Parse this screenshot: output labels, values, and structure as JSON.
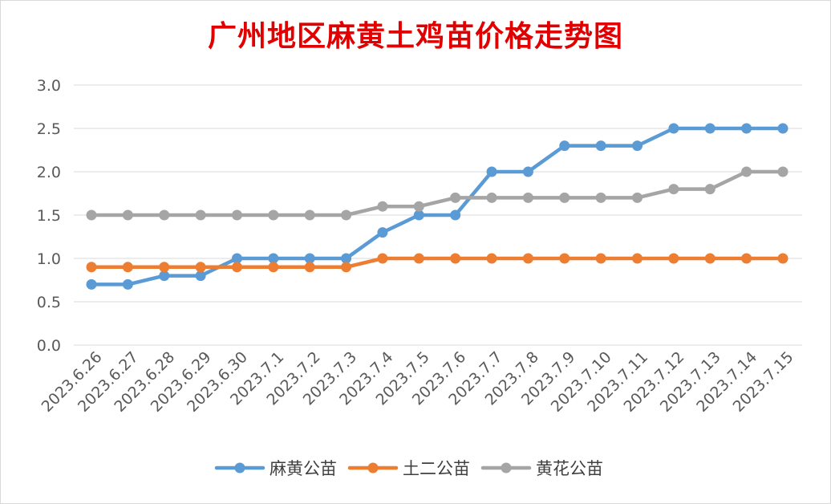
{
  "chart_data": {
    "type": "line",
    "title": "广州地区麻黄土鸡苗价格走势图",
    "xlabel": "",
    "ylabel": "",
    "ylim": [
      0,
      3.0
    ],
    "yticks": [
      "0.0",
      "0.5",
      "1.0",
      "1.5",
      "2.0",
      "2.5",
      "3.0"
    ],
    "grid": true,
    "legend_position": "bottom",
    "categories": [
      "2023.6.26",
      "2023.6.27",
      "2023.6.28",
      "2023.6.29",
      "2023.6.30",
      "2023.7.1",
      "2023.7.2",
      "2023.7.3",
      "2023.7.4",
      "2023.7.5",
      "2023.7.6",
      "2023.7.7",
      "2023.7.8",
      "2023.7.9",
      "2023.7.10",
      "2023.7.11",
      "2023.7.12",
      "2023.7.13",
      "2023.7.14",
      "2023.7.15"
    ],
    "series": [
      {
        "name": "麻黄公苗",
        "color": "#5b9bd5",
        "values": [
          0.7,
          0.7,
          0.8,
          0.8,
          1.0,
          1.0,
          1.0,
          1.0,
          1.3,
          1.5,
          1.5,
          2.0,
          2.0,
          2.3,
          2.3,
          2.3,
          2.5,
          2.5,
          2.5,
          2.5
        ]
      },
      {
        "name": "土二公苗",
        "color": "#ed7d31",
        "values": [
          0.9,
          0.9,
          0.9,
          0.9,
          0.9,
          0.9,
          0.9,
          0.9,
          1.0,
          1.0,
          1.0,
          1.0,
          1.0,
          1.0,
          1.0,
          1.0,
          1.0,
          1.0,
          1.0,
          1.0
        ]
      },
      {
        "name": "黄花公苗",
        "color": "#a5a5a5",
        "values": [
          1.5,
          1.5,
          1.5,
          1.5,
          1.5,
          1.5,
          1.5,
          1.5,
          1.6,
          1.6,
          1.7,
          1.7,
          1.7,
          1.7,
          1.7,
          1.7,
          1.8,
          1.8,
          2.0,
          2.0
        ]
      }
    ]
  }
}
